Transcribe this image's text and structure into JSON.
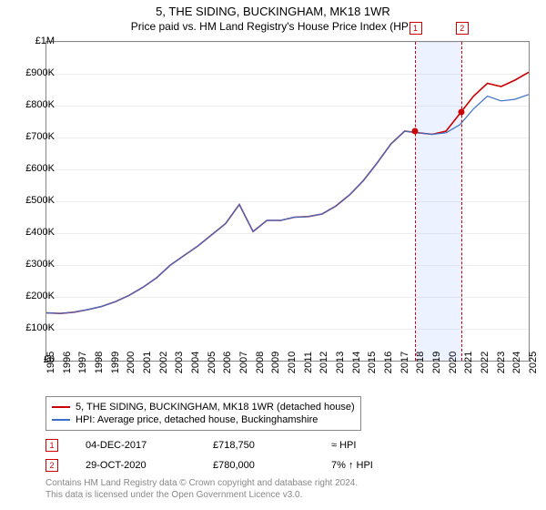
{
  "title": "5, THE SIDING, BUCKINGHAM, MK18 1WR",
  "subtitle": "Price paid vs. HM Land Registry's House Price Index (HPI)",
  "chart": {
    "type": "line",
    "background_color": "#ffffff",
    "grid_color": "#eeeeee",
    "border_color": "#888888",
    "ylim": [
      0,
      1000000
    ],
    "ytick_step": 100000,
    "yticks": [
      "£0",
      "£100K",
      "£200K",
      "£300K",
      "£400K",
      "£500K",
      "£600K",
      "£700K",
      "£800K",
      "£900K",
      "£1M"
    ],
    "xticks": [
      "1995",
      "1996",
      "1997",
      "1998",
      "1999",
      "2000",
      "2001",
      "2002",
      "2003",
      "2004",
      "2005",
      "2006",
      "2007",
      "2008",
      "2009",
      "2010",
      "2011",
      "2012",
      "2013",
      "2014",
      "2015",
      "2016",
      "2017",
      "2018",
      "2019",
      "2020",
      "2021",
      "2022",
      "2023",
      "2024",
      "2025"
    ],
    "series": [
      {
        "name": "5, THE SIDING, BUCKINGHAM, MK18 1WR (detached house)",
        "color": "#cc0000",
        "line_width": 1.6,
        "data": [
          150,
          148,
          152,
          160,
          170,
          185,
          205,
          230,
          260,
          300,
          330,
          360,
          395,
          430,
          490,
          405,
          440,
          440,
          450,
          452,
          460,
          485,
          520,
          565,
          620,
          680,
          720,
          715,
          710,
          720,
          775,
          830,
          870,
          860,
          880,
          905
        ]
      },
      {
        "name": "HPI: Average price, detached house, Buckinghamshire",
        "color": "#3b6fc9",
        "line_width": 1.2,
        "data": [
          150,
          148,
          152,
          160,
          170,
          185,
          205,
          230,
          260,
          300,
          330,
          360,
          395,
          430,
          490,
          405,
          440,
          440,
          450,
          452,
          460,
          485,
          520,
          565,
          620,
          680,
          720,
          715,
          710,
          715,
          740,
          790,
          830,
          815,
          820,
          835
        ]
      }
    ],
    "markers": [
      {
        "label": "1",
        "x_index": 22.9,
        "date": "04-DEC-2017",
        "price": "£718,750",
        "comparison": "≈ HPI",
        "dot_y": 718750,
        "dot_color": "#cc0000"
      },
      {
        "label": "2",
        "x_index": 25.8,
        "date": "29-OCT-2020",
        "price": "£780,000",
        "comparison": "7% ↑ HPI",
        "dot_y": 780000,
        "dot_color": "#cc0000"
      }
    ],
    "shade": {
      "from_index": 22.9,
      "to_index": 25.8
    }
  },
  "footer": {
    "line1": "Contains HM Land Registry data © Crown copyright and database right 2024.",
    "line2": "This data is licensed under the Open Government Licence v3.0."
  },
  "fonts": {
    "title_size": 13,
    "subtitle_size": 12,
    "tick_size": 11,
    "legend_size": 11,
    "footer_size": 10
  }
}
